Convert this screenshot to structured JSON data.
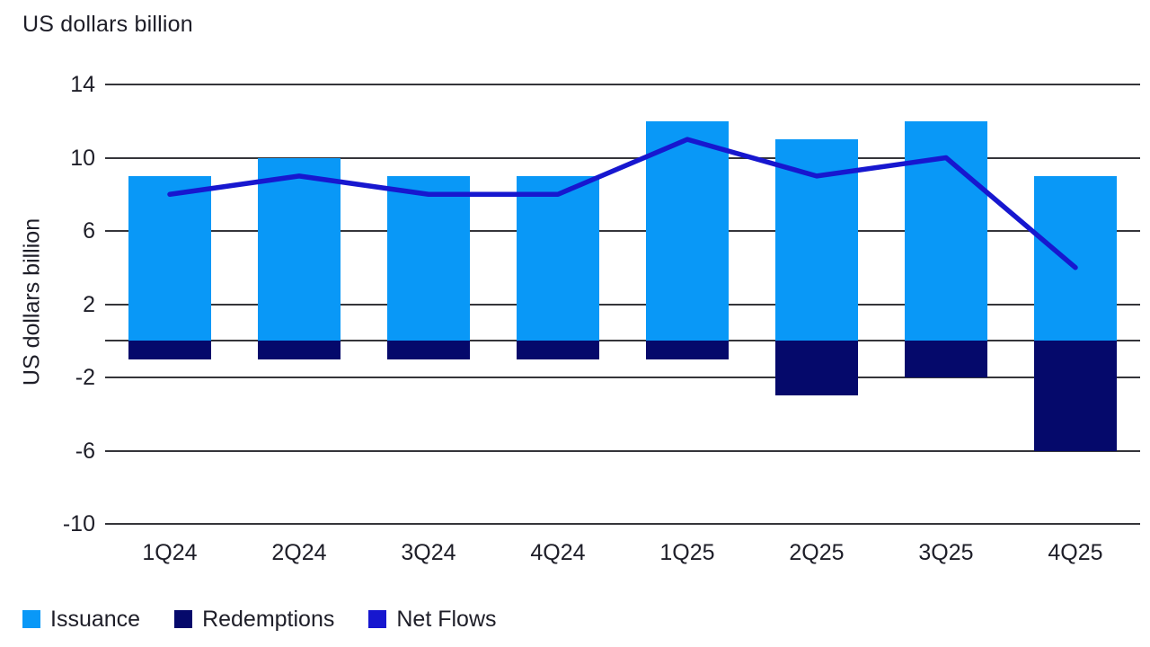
{
  "title": "US dollars billion",
  "chart_data": {
    "type": "bar",
    "subtype": "stacked-bars-with-line-overlay",
    "title": "US dollars billion",
    "ylabel": "US dollars billion",
    "xlabel": "",
    "categories": [
      "1Q24",
      "2Q24",
      "3Q24",
      "4Q24",
      "1Q25",
      "2Q25",
      "3Q25",
      "4Q25"
    ],
    "series": [
      {
        "name": "Issuance",
        "type": "bar",
        "color": "#0998f7",
        "values": [
          9,
          10,
          9,
          9,
          12,
          11,
          12,
          9
        ]
      },
      {
        "name": "Redemptions",
        "type": "bar",
        "color": "#05096b",
        "values": [
          -1,
          -1,
          -1,
          -1,
          -1,
          -3,
          -2,
          -6
        ]
      },
      {
        "name": "Net Flows",
        "type": "line",
        "color": "#1717cf",
        "values": [
          8,
          9,
          8,
          8,
          11,
          9,
          10,
          4
        ]
      }
    ],
    "ylim": [
      -10,
      14
    ],
    "ytick_labels": [
      "14",
      "10",
      "6",
      "2",
      "-2",
      "-6",
      "-10"
    ],
    "ytick_values": [
      14,
      10,
      6,
      2,
      -2,
      -6,
      -10
    ],
    "gridline_values": [
      14,
      10,
      6,
      2,
      0,
      -2,
      -6,
      -10
    ],
    "grid": "on",
    "legend_position": "bottom-left"
  },
  "colors": {
    "background": "#ffffff",
    "gridline": "#35353a",
    "text": "#1e1e28",
    "issuance": "#0998f7",
    "redemptions": "#05096b",
    "net_flows": "#1717cf"
  },
  "legend": {
    "items": [
      {
        "label": "Issuance"
      },
      {
        "label": "Redemptions"
      },
      {
        "label": "Net Flows"
      }
    ]
  }
}
